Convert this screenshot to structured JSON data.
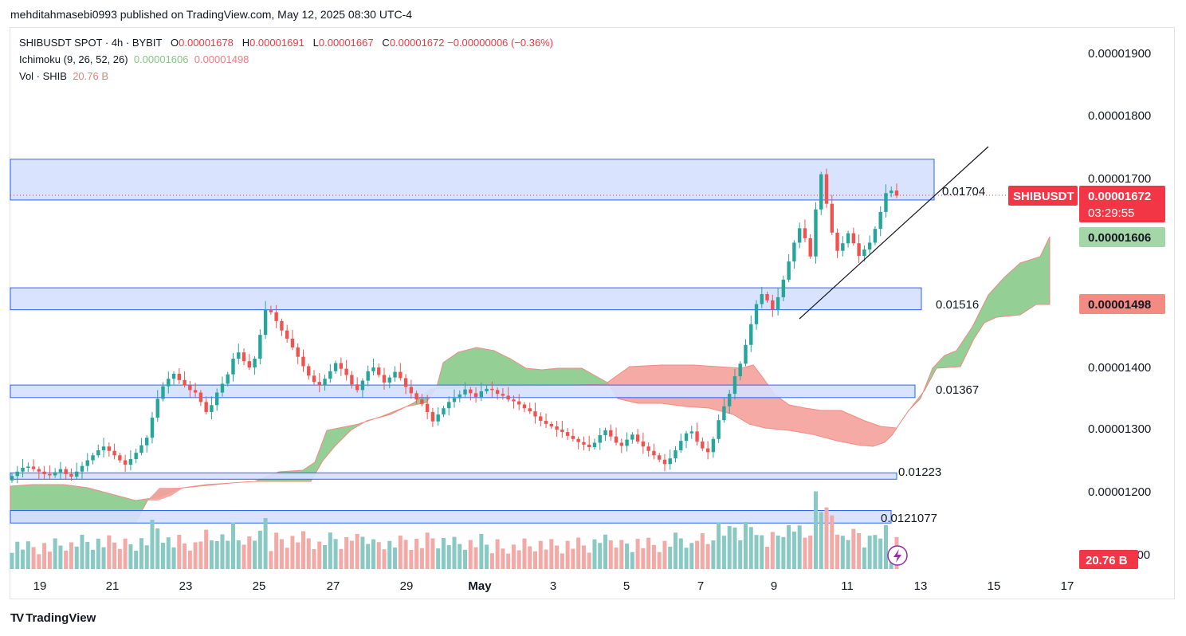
{
  "header": {
    "published": "mehditahmasebi0993 published on TradingView.com, May 12, 2025 08:30 UTC-4"
  },
  "legend": {
    "symbol": "SHIBUSDT SPOT · 4h · BYBIT",
    "o_label": "O",
    "o": "0.00001678",
    "h_label": "H",
    "h": "0.00001691",
    "l_label": "L",
    "l": "0.00001667",
    "c_label": "C",
    "c": "0.00001672",
    "change": "−0.00000006 (−0.36%)",
    "ichimoku_label": "Ichimoku (9, 26, 52, 26)",
    "ichimoku_a": "0.00001606",
    "ichimoku_b": "0.00001498",
    "vol_label": "Vol · SHIB",
    "vol_value": "20.76 B"
  },
  "price_scale": [
    "0.00001900",
    "0.00001800",
    "0.00001700",
    "0.00001400",
    "0.00001300",
    "0.00001200",
    "0.00001100"
  ],
  "badges": {
    "symbol": "SHIBUSDT",
    "price": "0.00001672",
    "countdown": "03:29:55",
    "span_a": "0.00001606",
    "span_b": "0.00001498",
    "volume": "20.76 B"
  },
  "colors": {
    "up": "#26a69a",
    "down": "#ef5350",
    "price_badge": "#f23645",
    "cloud_bull": "#81c784",
    "cloud_bear": "#f4a19c",
    "zone_fill": "#d6e0fe",
    "zone_border": "#2962ff",
    "vol_up": "#89c9c3",
    "vol_down": "#f3a9a6"
  },
  "zone_labels": [
    "0.01704",
    "0.01516",
    "0.01367",
    "0.01223",
    "0.0121077"
  ],
  "watermark": "TradingView",
  "chart_data": {
    "type": "candlestick",
    "symbol": "SHIBUSDT",
    "timeframe": "4h",
    "x_ticks": [
      "19",
      "21",
      "23",
      "25",
      "27",
      "29",
      "May",
      "3",
      "5",
      "7",
      "9",
      "11",
      "13",
      "15",
      "17"
    ],
    "ylim": [
      1.1e-05,
      1.92e-05
    ],
    "current_price": 1.672e-05,
    "zones": [
      {
        "label": "0.01704",
        "low": 1.665e-05,
        "high": 1.73e-05
      },
      {
        "label": "0.01516",
        "low": 1.49e-05,
        "high": 1.525e-05
      },
      {
        "label": "0.01367",
        "low": 1.35e-05,
        "high": 1.37e-05
      },
      {
        "label": "0.01223",
        "low": 1.22e-05,
        "high": 1.23e-05
      },
      {
        "label": "0.0121077",
        "low": 1.15e-05,
        "high": 1.17e-05
      }
    ],
    "candles": {
      "start": "2025-04-18",
      "interval_hours": 4,
      "close": [
        1.225,
        1.232,
        1.238,
        1.24,
        1.236,
        1.232,
        1.228,
        1.226,
        1.231,
        1.236,
        1.228,
        1.224,
        1.232,
        1.241,
        1.25,
        1.258,
        1.266,
        1.272,
        1.265,
        1.258,
        1.25,
        1.243,
        1.252,
        1.262,
        1.274,
        1.286,
        1.318,
        1.348,
        1.368,
        1.38,
        1.388,
        1.378,
        1.37,
        1.362,
        1.358,
        1.343,
        1.327,
        1.338,
        1.358,
        1.372,
        1.387,
        1.412,
        1.422,
        1.408,
        1.398,
        1.412,
        1.45,
        1.49,
        1.486,
        1.472,
        1.457,
        1.444,
        1.43,
        1.415,
        1.4,
        1.385,
        1.375,
        1.37,
        1.38,
        1.392,
        1.405,
        1.396,
        1.386,
        1.371,
        1.362,
        1.377,
        1.392,
        1.398,
        1.386,
        1.374,
        1.382,
        1.391,
        1.381,
        1.367,
        1.357,
        1.347,
        1.34,
        1.327,
        1.312,
        1.323,
        1.333,
        1.343,
        1.349,
        1.355,
        1.363,
        1.357,
        1.351,
        1.36,
        1.364,
        1.362,
        1.356,
        1.353,
        1.347,
        1.344,
        1.339,
        1.333,
        1.328,
        1.32,
        1.313,
        1.308,
        1.304,
        1.299,
        1.295,
        1.289,
        1.284,
        1.279,
        1.275,
        1.271,
        1.278,
        1.29,
        1.298,
        1.288,
        1.278,
        1.273,
        1.283,
        1.291,
        1.28,
        1.272,
        1.265,
        1.258,
        1.251,
        1.244,
        1.253,
        1.266,
        1.281,
        1.293,
        1.296,
        1.28,
        1.269,
        1.263,
        1.284,
        1.314,
        1.336,
        1.356,
        1.384,
        1.404,
        1.434,
        1.467,
        1.499,
        1.515,
        1.505,
        1.49,
        1.51,
        1.538,
        1.567,
        1.597,
        1.62,
        1.604,
        1.575,
        1.65,
        1.706,
        1.659,
        1.613,
        1.584,
        1.596,
        1.612,
        1.596,
        1.576,
        1.586,
        1.597,
        1.619,
        1.646,
        1.676,
        1.68,
        1.672
      ],
      "close_unit": "x 0.00001",
      "volume_last": "20.76 B"
    },
    "ichimoku": {
      "span_a": 1.606e-05,
      "span_b": 1.498e-05
    }
  }
}
